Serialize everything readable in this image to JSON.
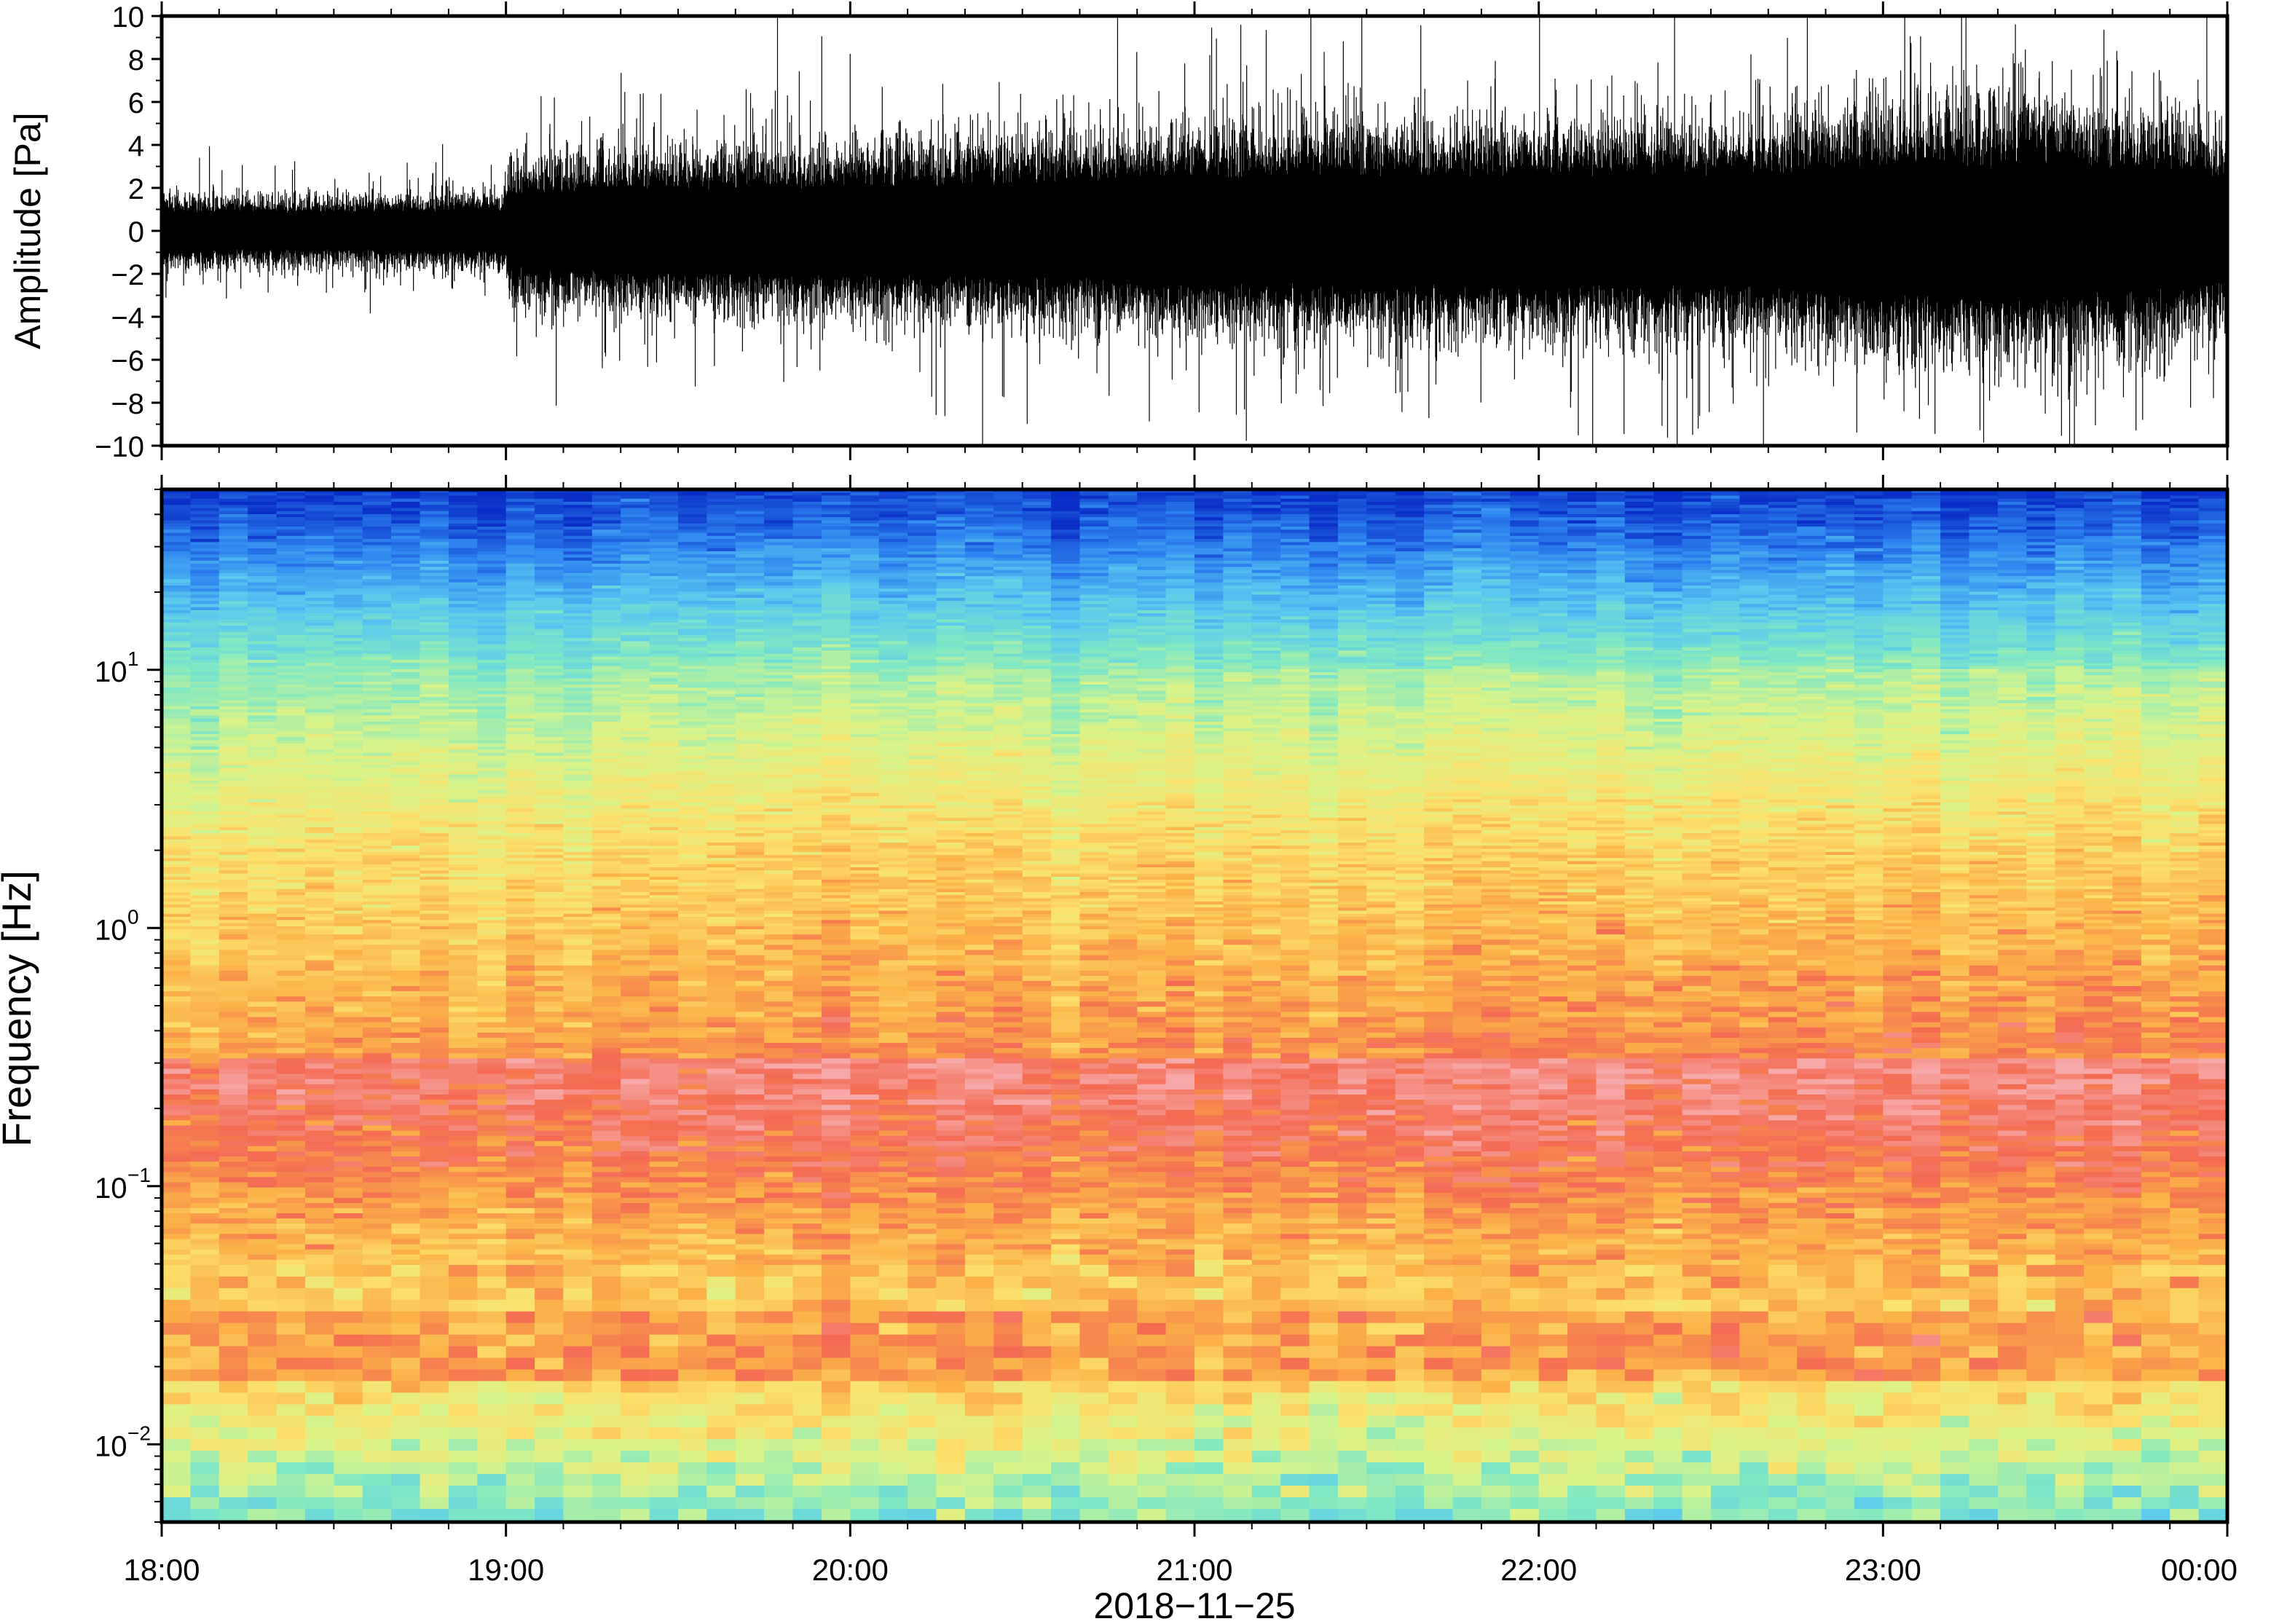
{
  "chart_data": [
    {
      "type": "line",
      "panel": "waveform",
      "ylabel": "Amplitude [Pa]",
      "ylim": [
        -10,
        10
      ],
      "yticks": [
        -10,
        -8,
        -6,
        -4,
        -2,
        0,
        2,
        4,
        6,
        8,
        10
      ],
      "ytick_labels": [
        "−10",
        "−8",
        "−6",
        "−4",
        "−2",
        "0",
        "2",
        "4",
        "6",
        "8",
        "10"
      ],
      "xlim_hours": [
        18,
        24
      ],
      "envelope": {
        "time_hours": [
          18.0,
          18.5,
          19.0,
          19.01,
          19.5,
          20.0,
          20.5,
          21.0,
          21.5,
          22.0,
          22.5,
          23.0,
          23.5,
          24.0
        ],
        "typical_abs_amplitude": [
          1.6,
          1.5,
          1.7,
          3.0,
          3.4,
          3.6,
          3.8,
          4.2,
          4.5,
          4.5,
          4.4,
          5.2,
          5.4,
          4.2
        ]
      },
      "line_color": "#000000",
      "grid": false
    },
    {
      "type": "heatmap",
      "panel": "spectrogram",
      "ylabel": "Frequency [Hz]",
      "yscale": "log",
      "ylim": [
        0.005,
        50
      ],
      "yticks": [
        0.01,
        0.1,
        1,
        10
      ],
      "ytick_labels": [
        {
          "base": "10",
          "exp": "−2"
        },
        {
          "base": "10",
          "exp": "−1"
        },
        {
          "base": "10",
          "exp": "0"
        },
        {
          "base": "10",
          "exp": "1"
        }
      ],
      "xlim_hours": [
        18,
        24
      ],
      "colormap": [
        "#0a2fc8",
        "#2f86f0",
        "#59c8f0",
        "#7fe8c4",
        "#d8f48a",
        "#fce06a",
        "#fbb048",
        "#f46a52",
        "#f7a8a8"
      ],
      "time_columns": 72,
      "grid": false
    }
  ],
  "xaxis": {
    "tick_labels": [
      "18:00",
      "19:00",
      "20:00",
      "21:00",
      "22:00",
      "23:00",
      "00:00"
    ],
    "date_label": "2018−11−25"
  }
}
